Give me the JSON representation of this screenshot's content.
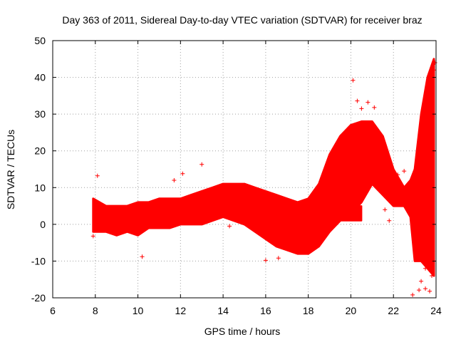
{
  "chart_data": {
    "type": "scatter",
    "title": "Day 363 of 2011, Sidereal Day-to-day VTEC variation (SDTVAR) for receiver braz",
    "xlabel": "GPS time / hours",
    "ylabel": "SDTVAR / TECUs",
    "xlim": [
      6,
      24
    ],
    "ylim": [
      -20,
      50
    ],
    "xticks": [
      "6",
      "8",
      "10",
      "12",
      "14",
      "16",
      "18",
      "20",
      "22",
      "24"
    ],
    "yticks": [
      "50",
      "40",
      "30",
      "20",
      "10",
      "0",
      "-10",
      "-20"
    ],
    "grid": true,
    "marker": "+",
    "color": "#ff0000",
    "series": [
      {
        "name": "SDTVAR",
        "bands": [
          {
            "x": 7.9,
            "lo": -2,
            "hi": 7
          },
          {
            "x": 8.5,
            "lo": -2,
            "hi": 5
          },
          {
            "x": 9,
            "lo": -3,
            "hi": 5
          },
          {
            "x": 9.5,
            "lo": -2,
            "hi": 5
          },
          {
            "x": 10,
            "lo": -3,
            "hi": 6
          },
          {
            "x": 10.5,
            "lo": -1,
            "hi": 6
          },
          {
            "x": 11,
            "lo": -1,
            "hi": 7
          },
          {
            "x": 11.5,
            "lo": -1,
            "hi": 7
          },
          {
            "x": 12,
            "lo": 0,
            "hi": 7
          },
          {
            "x": 12.5,
            "lo": 0,
            "hi": 8
          },
          {
            "x": 13,
            "lo": 0,
            "hi": 9
          },
          {
            "x": 13.5,
            "lo": 1,
            "hi": 10
          },
          {
            "x": 14,
            "lo": 2,
            "hi": 11
          },
          {
            "x": 14.5,
            "lo": 1,
            "hi": 11
          },
          {
            "x": 15,
            "lo": 0,
            "hi": 11
          },
          {
            "x": 15.5,
            "lo": -2,
            "hi": 10
          },
          {
            "x": 16,
            "lo": -4,
            "hi": 9
          },
          {
            "x": 16.5,
            "lo": -6,
            "hi": 8
          },
          {
            "x": 17,
            "lo": -7,
            "hi": 7
          },
          {
            "x": 17.5,
            "lo": -8,
            "hi": 6
          },
          {
            "x": 18,
            "lo": -8,
            "hi": 7
          },
          {
            "x": 18.5,
            "lo": -6,
            "hi": 11
          },
          {
            "x": 19,
            "lo": -2,
            "hi": 19
          },
          {
            "x": 19.5,
            "lo": 1,
            "hi": 24
          },
          {
            "x": 20,
            "lo": 3,
            "hi": 27
          },
          {
            "x": 20.5,
            "lo": 6,
            "hi": 28
          },
          {
            "x": 21,
            "lo": 11,
            "hi": 28
          },
          {
            "x": 21.5,
            "lo": 8,
            "hi": 24
          },
          {
            "x": 22,
            "lo": 5,
            "hi": 15
          },
          {
            "x": 22.5,
            "lo": 5,
            "hi": 10
          },
          {
            "x": 22.8,
            "lo": 2,
            "hi": 12
          },
          {
            "x": 23,
            "lo": -10,
            "hi": 15
          },
          {
            "x": 23.3,
            "lo": -10,
            "hi": 30
          },
          {
            "x": 23.6,
            "lo": -12,
            "hi": 40
          },
          {
            "x": 23.9,
            "lo": -14,
            "hi": 45
          }
        ],
        "branch": [
          {
            "x": 18.5,
            "lo": -4,
            "hi": 0
          },
          {
            "x": 19,
            "lo": -1,
            "hi": 3
          },
          {
            "x": 19.5,
            "lo": 1,
            "hi": 4
          },
          {
            "x": 20,
            "lo": 1,
            "hi": 5
          },
          {
            "x": 20.5,
            "lo": 1,
            "hi": 5
          }
        ],
        "outliers": [
          {
            "x": 8.1,
            "y": 13.2
          },
          {
            "x": 7.9,
            "y": -3.2
          },
          {
            "x": 10.2,
            "y": -8.8
          },
          {
            "x": 11.7,
            "y": 12
          },
          {
            "x": 12.1,
            "y": 13.8
          },
          {
            "x": 13,
            "y": 16.3
          },
          {
            "x": 14.3,
            "y": -0.5
          },
          {
            "x": 16,
            "y": -9.8
          },
          {
            "x": 16.6,
            "y": -9.2
          },
          {
            "x": 20.1,
            "y": 39.2
          },
          {
            "x": 20.3,
            "y": 33.6
          },
          {
            "x": 20.5,
            "y": 31.5
          },
          {
            "x": 20.8,
            "y": 33.2
          },
          {
            "x": 21.1,
            "y": 31.8
          },
          {
            "x": 22.9,
            "y": -19.2
          },
          {
            "x": 23.2,
            "y": -17.9
          },
          {
            "x": 23.5,
            "y": -17.5
          },
          {
            "x": 23.7,
            "y": -18.2
          },
          {
            "x": 23.3,
            "y": -15.5
          },
          {
            "x": 23.8,
            "y": -14
          },
          {
            "x": 23.5,
            "y": -12
          },
          {
            "x": 23.1,
            "y": -7
          },
          {
            "x": 23.9,
            "y": 42
          },
          {
            "x": 23.8,
            "y": 38
          },
          {
            "x": 23.6,
            "y": 35
          },
          {
            "x": 23.95,
            "y": 44
          },
          {
            "x": 21.6,
            "y": 4
          },
          {
            "x": 21.8,
            "y": 1
          },
          {
            "x": 22.2,
            "y": 13.5
          },
          {
            "x": 22.5,
            "y": 14.5
          }
        ]
      }
    ]
  }
}
